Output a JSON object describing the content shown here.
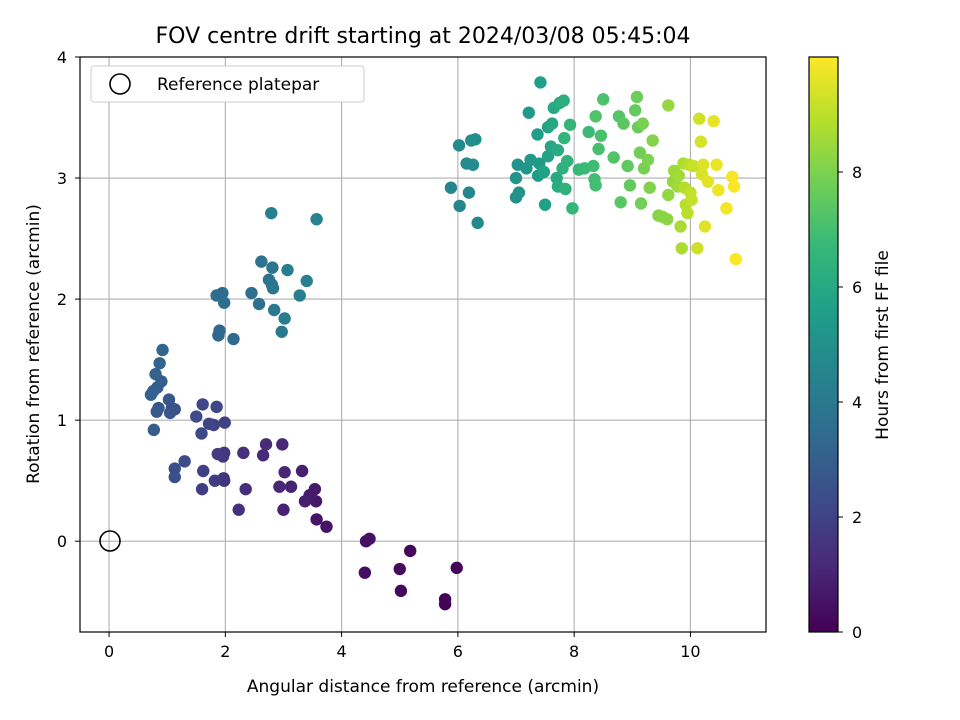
{
  "chart_data": {
    "type": "scatter",
    "title": "FOV centre drift starting at 2024/03/08 05:45:04",
    "xlabel": "Angular distance from reference (arcmin)",
    "ylabel": "Rotation from reference (arcmin)",
    "xlim": [
      -0.5,
      11.3
    ],
    "ylim": [
      -0.75,
      4.0
    ],
    "xticks": [
      0,
      2,
      4,
      6,
      8,
      10
    ],
    "yticks": [
      0,
      1,
      2,
      3,
      4
    ],
    "grid": true,
    "legend": {
      "placement": "top-left",
      "entries": [
        "Reference platepar"
      ]
    },
    "reference_point": {
      "x": 0,
      "y": 0
    },
    "colorbar": {
      "label": "Hours from first FF file",
      "range": [
        0,
        10
      ],
      "ticks": [
        0,
        2,
        4,
        6,
        8
      ],
      "colormap": "viridis"
    },
    "series": [
      {
        "points": [
          [
            5.78,
            -0.52
          ],
          [
            5.78,
            -0.48
          ],
          [
            5.98,
            -0.22
          ],
          [
            5.18,
            -0.08
          ],
          [
            5.02,
            -0.41
          ],
          [
            5.0,
            -0.23
          ],
          [
            4.4,
            -0.26
          ],
          [
            4.42,
            0.0
          ],
          [
            4.48,
            0.02
          ],
          [
            3.74,
            0.12
          ],
          [
            3.57,
            0.18
          ],
          [
            3.56,
            0.33
          ],
          [
            3.54,
            0.43
          ],
          [
            3.45,
            0.38
          ],
          [
            3.37,
            0.33
          ],
          [
            3.32,
            0.58
          ],
          [
            3.0,
            0.26
          ],
          [
            3.13,
            0.45
          ],
          [
            3.02,
            0.57
          ],
          [
            2.98,
            0.8
          ],
          [
            2.93,
            0.45
          ],
          [
            2.65,
            0.71
          ],
          [
            2.7,
            0.8
          ],
          [
            2.35,
            0.43
          ],
          [
            2.31,
            0.73
          ],
          [
            2.23,
            0.26
          ],
          [
            1.98,
            0.5
          ],
          [
            1.97,
            0.52
          ],
          [
            1.96,
            0.7
          ],
          [
            1.98,
            0.73
          ],
          [
            1.87,
            0.72
          ],
          [
            1.82,
            0.5
          ],
          [
            1.6,
            0.43
          ],
          [
            1.62,
            0.58
          ],
          [
            1.99,
            0.98
          ],
          [
            1.8,
            0.96
          ],
          [
            1.72,
            0.97
          ],
          [
            1.85,
            1.11
          ],
          [
            1.61,
            1.13
          ],
          [
            1.59,
            0.89
          ],
          [
            1.5,
            1.03
          ],
          [
            1.3,
            0.66
          ],
          [
            1.13,
            0.6
          ],
          [
            1.13,
            0.53
          ],
          [
            1.13,
            1.09
          ],
          [
            1.08,
            1.1
          ],
          [
            1.05,
            1.06
          ],
          [
            1.03,
            1.17
          ],
          [
            0.85,
            1.1
          ],
          [
            0.82,
            1.07
          ],
          [
            0.77,
            0.92
          ],
          [
            0.83,
            1.27
          ],
          [
            0.9,
            1.32
          ],
          [
            0.76,
            1.24
          ],
          [
            0.72,
            1.21
          ],
          [
            0.8,
            1.38
          ],
          [
            0.87,
            1.47
          ],
          [
            0.92,
            1.58
          ],
          [
            1.88,
            1.7
          ],
          [
            1.9,
            1.74
          ],
          [
            2.14,
            1.67
          ],
          [
            1.85,
            2.03
          ],
          [
            1.95,
            2.05
          ],
          [
            1.98,
            1.97
          ],
          [
            2.45,
            2.05
          ],
          [
            2.58,
            1.96
          ],
          [
            2.62,
            2.31
          ],
          [
            2.75,
            2.16
          ],
          [
            2.8,
            2.12
          ],
          [
            2.81,
            2.26
          ],
          [
            2.82,
            2.09
          ],
          [
            2.84,
            1.91
          ],
          [
            2.97,
            1.73
          ],
          [
            3.02,
            1.84
          ],
          [
            3.07,
            2.24
          ],
          [
            3.28,
            2.03
          ],
          [
            3.4,
            2.15
          ],
          [
            2.79,
            2.71
          ],
          [
            3.57,
            2.66
          ],
          [
            5.88,
            2.92
          ],
          [
            6.03,
            2.77
          ],
          [
            6.19,
            2.88
          ],
          [
            6.34,
            2.63
          ],
          [
            6.02,
            3.27
          ],
          [
            6.15,
            3.12
          ],
          [
            6.26,
            3.11
          ],
          [
            6.23,
            3.31
          ],
          [
            6.3,
            3.32
          ],
          [
            7.0,
            2.84
          ],
          [
            7.05,
            2.88
          ],
          [
            7.0,
            3.0
          ],
          [
            7.03,
            3.11
          ],
          [
            7.18,
            3.08
          ],
          [
            7.25,
            3.15
          ],
          [
            7.22,
            3.54
          ],
          [
            7.4,
            3.12
          ],
          [
            7.38,
            3.02
          ],
          [
            7.37,
            3.36
          ],
          [
            7.42,
            3.79
          ],
          [
            7.5,
            2.78
          ],
          [
            7.48,
            3.05
          ],
          [
            7.55,
            3.18
          ],
          [
            7.55,
            3.42
          ],
          [
            7.6,
            3.26
          ],
          [
            7.62,
            3.45
          ],
          [
            7.65,
            3.58
          ],
          [
            7.7,
            3.0
          ],
          [
            7.72,
            2.93
          ],
          [
            7.72,
            3.23
          ],
          [
            7.75,
            3.62
          ],
          [
            7.82,
            3.64
          ],
          [
            7.8,
            3.08
          ],
          [
            7.88,
            3.14
          ],
          [
            7.85,
            2.91
          ],
          [
            7.83,
            3.33
          ],
          [
            7.93,
            3.44
          ],
          [
            7.97,
            2.75
          ],
          [
            8.08,
            3.07
          ],
          [
            8.18,
            3.08
          ],
          [
            8.25,
            3.38
          ],
          [
            8.33,
            3.1
          ],
          [
            8.35,
            2.99
          ],
          [
            8.37,
            2.94
          ],
          [
            8.42,
            3.24
          ],
          [
            8.46,
            3.35
          ],
          [
            8.5,
            3.65
          ],
          [
            8.37,
            3.51
          ],
          [
            8.68,
            3.17
          ],
          [
            8.77,
            3.51
          ],
          [
            8.8,
            2.8
          ],
          [
            8.85,
            3.45
          ],
          [
            8.92,
            3.1
          ],
          [
            8.96,
            2.94
          ],
          [
            9.05,
            3.56
          ],
          [
            9.1,
            3.42
          ],
          [
            9.08,
            3.67
          ],
          [
            9.13,
            3.21
          ],
          [
            9.15,
            2.79
          ],
          [
            9.2,
            3.08
          ],
          [
            9.18,
            3.45
          ],
          [
            9.27,
            3.15
          ],
          [
            9.3,
            2.92
          ],
          [
            9.35,
            3.31
          ],
          [
            9.45,
            2.69
          ],
          [
            9.52,
            2.68
          ],
          [
            9.6,
            2.66
          ],
          [
            9.62,
            2.86
          ],
          [
            9.62,
            3.6
          ],
          [
            9.7,
            2.97
          ],
          [
            9.72,
            3.06
          ],
          [
            9.78,
            2.93
          ],
          [
            9.8,
            3.02
          ],
          [
            9.83,
            2.6
          ],
          [
            9.85,
            2.42
          ],
          [
            9.88,
            3.12
          ],
          [
            9.9,
            2.92
          ],
          [
            9.92,
            2.78
          ],
          [
            9.95,
            2.71
          ],
          [
            9.98,
            3.11
          ],
          [
            10.0,
            2.88
          ],
          [
            10.02,
            2.82
          ],
          [
            10.05,
            3.1
          ],
          [
            10.12,
            2.42
          ],
          [
            10.15,
            3.49
          ],
          [
            10.18,
            3.3
          ],
          [
            10.2,
            3.03
          ],
          [
            10.22,
            3.11
          ],
          [
            10.25,
            2.6
          ],
          [
            10.3,
            2.97
          ],
          [
            10.4,
            3.47
          ],
          [
            10.45,
            3.11
          ],
          [
            10.48,
            2.9
          ],
          [
            10.62,
            2.75
          ],
          [
            10.72,
            3.01
          ],
          [
            10.75,
            2.93
          ],
          [
            10.78,
            2.33
          ]
        ]
      }
    ]
  }
}
